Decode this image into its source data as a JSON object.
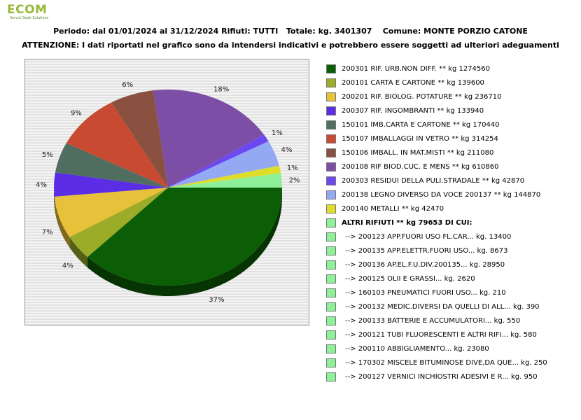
{
  "logo": {
    "text": "ECOM",
    "tagline": "Servizi Sede Solutions"
  },
  "header": {
    "line1": "Periodo: dal 01/01/2024 al 31/12/2024 Rifiuti: TUTTI   Totale: kg. 3401307    Comune: MONTE PORZIO CATONE",
    "line2": "ATTENZIONE: I dati riportati nel grafico sono da intendersi indicativi e potrebbero essere soggetti ad ulteriori adeguamenti"
  },
  "chart_data": {
    "type": "pie",
    "title": "",
    "slices": [
      {
        "label": "200301 RIF. URB.NON DIFF. ** kg 1274560",
        "value": 1274560,
        "pct_label": "37%",
        "color": "#0b5e06"
      },
      {
        "label": "200101 CARTA E CARTONE ** kg 139600",
        "value": 139600,
        "pct_label": "4%",
        "color": "#9aac28"
      },
      {
        "label": "200201 RIF. BIOLOG. POTATURE ** kg 236710",
        "value": 236710,
        "pct_label": "7%",
        "color": "#e8c13a"
      },
      {
        "label": "200307 RIF. INGOMBRANTI ** kg 133940",
        "value": 133940,
        "pct_label": "4%",
        "color": "#5b2ee6"
      },
      {
        "label": "150101 IMB.CARTA E CARTONE ** kg 170440",
        "value": 170440,
        "pct_label": "5%",
        "color": "#4f6e60"
      },
      {
        "label": "150107 IMBALLAGGI IN VETRO ** kg 314254",
        "value": 314254,
        "pct_label": "9%",
        "color": "#c84a32"
      },
      {
        "label": "150106 IMBALL. IN MAT.MISTI ** kg 211080",
        "value": 211080,
        "pct_label": "6%",
        "color": "#8a5040"
      },
      {
        "label": "200108 RIF BIOD.CUC. E MENS ** kg 610860",
        "value": 610860,
        "pct_label": "18%",
        "color": "#7d4ea6"
      },
      {
        "label": "200303 RESIDUI DELLA PULI.STRADALE ** kg 42870",
        "value": 42870,
        "pct_label": "1%",
        "color": "#6b48f0"
      },
      {
        "label": "200138 LEGNO DIVERSO DA VOCE 200137 ** kg 144870",
        "value": 144870,
        "pct_label": "4%",
        "color": "#93a9f3"
      },
      {
        "label": "200140 METALLI ** kg 42470",
        "value": 42470,
        "pct_label": "1%",
        "color": "#dedd2a"
      },
      {
        "label": "ALTRI RIFIUTI ** kg 79653 DI CUI:",
        "value": 79653,
        "pct_label": "2%",
        "color": "#8ff09a"
      }
    ]
  },
  "legend": {
    "items": [
      {
        "text": "200301 RIF. URB.NON DIFF. ** kg 1274560",
        "color": "#0b5e06"
      },
      {
        "text": "200101 CARTA E CARTONE ** kg 139600",
        "color": "#9aac28"
      },
      {
        "text": "200201 RIF. BIOLOG. POTATURE ** kg 236710",
        "color": "#e8c13a"
      },
      {
        "text": "200307 RIF. INGOMBRANTI ** kg 133940",
        "color": "#5b2ee6"
      },
      {
        "text": "150101 IMB.CARTA E CARTONE ** kg 170440",
        "color": "#4f6e60"
      },
      {
        "text": "150107 IMBALLAGGI IN VETRO ** kg 314254",
        "color": "#c84a32"
      },
      {
        "text": "150106 IMBALL. IN MAT.MISTI ** kg 211080",
        "color": "#8a5040"
      },
      {
        "text": "200108 RIF BIOD.CUC. E MENS ** kg 610860",
        "color": "#7d4ea6"
      },
      {
        "text": "200303 RESIDUI DELLA PULI.STRADALE ** kg 42870",
        "color": "#6b48f0"
      },
      {
        "text": "200138 LEGNO DIVERSO DA VOCE 200137 ** kg 144870",
        "color": "#93a9f3"
      },
      {
        "text": "200140 METALLI ** kg 42470",
        "color": "#dedd2a"
      }
    ],
    "others_header": {
      "text": "ALTRI RIFIUTI ** kg 79653 DI CUI:",
      "color": "#8ff09a"
    },
    "others": [
      {
        "text": "-->  200123 APP.FUORI USO FL.CAR... kg. 13400",
        "color": "#8ff09a"
      },
      {
        "text": "-->  200135 APP.ELETTR.FUORI USO... kg. 8673",
        "color": "#8ff09a"
      },
      {
        "text": "-->  200136 AP.EL.F.U.DIV.200135... kg. 28950",
        "color": "#8ff09a"
      },
      {
        "text": "-->  200125 OLII E GRASSI... kg. 2620",
        "color": "#8ff09a"
      },
      {
        "text": "-->  160103 PNEUMATICI FUORI USO... kg. 210",
        "color": "#8ff09a"
      },
      {
        "text": "-->  200132 MEDIC.DIVERSI DA QUELLI DI ALL... kg. 390",
        "color": "#8ff09a"
      },
      {
        "text": "-->  200133 BATTERIE E ACCUMULATORI... kg. 550",
        "color": "#8ff09a"
      },
      {
        "text": "-->  200121 TUBI FLUORESCENTI E ALTRI RIFI... kg. 580",
        "color": "#8ff09a"
      },
      {
        "text": "-->  200110 ABBIGLIAMENTO... kg. 23080",
        "color": "#8ff09a"
      },
      {
        "text": "-->  170302 MISCELE BITUMINOSE DIVE,DA QUE... kg. 250",
        "color": "#8ff09a"
      },
      {
        "text": "-->  200127 VERNICI INCHIOSTRI ADESIVI E R... kg. 950",
        "color": "#8ff09a"
      }
    ]
  }
}
